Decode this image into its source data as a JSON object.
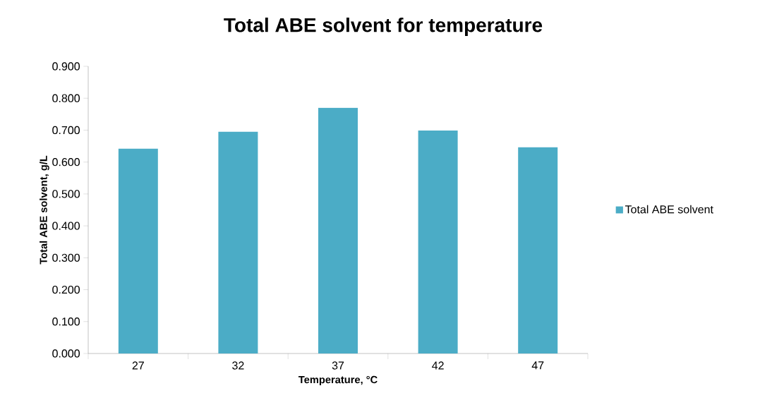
{
  "chart_data": {
    "type": "bar",
    "title": "Total ABE solvent for temperature",
    "xlabel": "Temperature, °C",
    "ylabel": "Total ABE solvent, g/L",
    "categories": [
      "27",
      "32",
      "37",
      "42",
      "47"
    ],
    "series": [
      {
        "name": "Total ABE solvent",
        "color": "#4bacc6",
        "values": [
          0.642,
          0.695,
          0.77,
          0.699,
          0.646
        ]
      }
    ],
    "ylim": [
      0,
      0.9
    ],
    "yticks": [
      {
        "value": 0,
        "label": "0.000"
      },
      {
        "value": 0.1,
        "label": "0.100"
      },
      {
        "value": 0.2,
        "label": "0.200"
      },
      {
        "value": 0.3,
        "label": "0.300"
      },
      {
        "value": 0.4,
        "label": "0.400"
      },
      {
        "value": 0.5,
        "label": "0.500"
      },
      {
        "value": 0.6,
        "label": "0.600"
      },
      {
        "value": 0.7,
        "label": "0.700"
      },
      {
        "value": 0.8,
        "label": "0.800"
      },
      {
        "value": 0.9,
        "label": "0.900"
      }
    ],
    "grid": false,
    "legend": "right"
  }
}
